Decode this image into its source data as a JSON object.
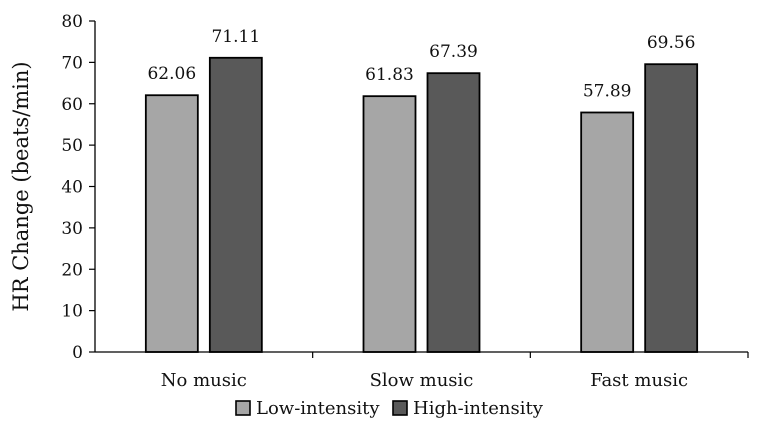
{
  "chart_data": {
    "type": "bar",
    "title": "",
    "xlabel": "",
    "ylabel": "HR Change (beats/min)",
    "ylim": [
      0,
      80
    ],
    "yticks": [
      0,
      10,
      20,
      30,
      40,
      50,
      60,
      70,
      80
    ],
    "categories": [
      "No music",
      "Slow music",
      "Fast music"
    ],
    "series": [
      {
        "name": "Low-intensity",
        "values": [
          62.06,
          61.83,
          57.89
        ],
        "color": "#a6a6a6"
      },
      {
        "name": "High-intensity",
        "values": [
          71.11,
          67.39,
          69.56
        ],
        "color": "#595959"
      }
    ],
    "value_labels": [
      [
        "62.06",
        "61.83",
        "57.89"
      ],
      [
        "71.11",
        "67.39",
        "69.56"
      ]
    ],
    "grid": false,
    "legend": "bottom-center"
  }
}
